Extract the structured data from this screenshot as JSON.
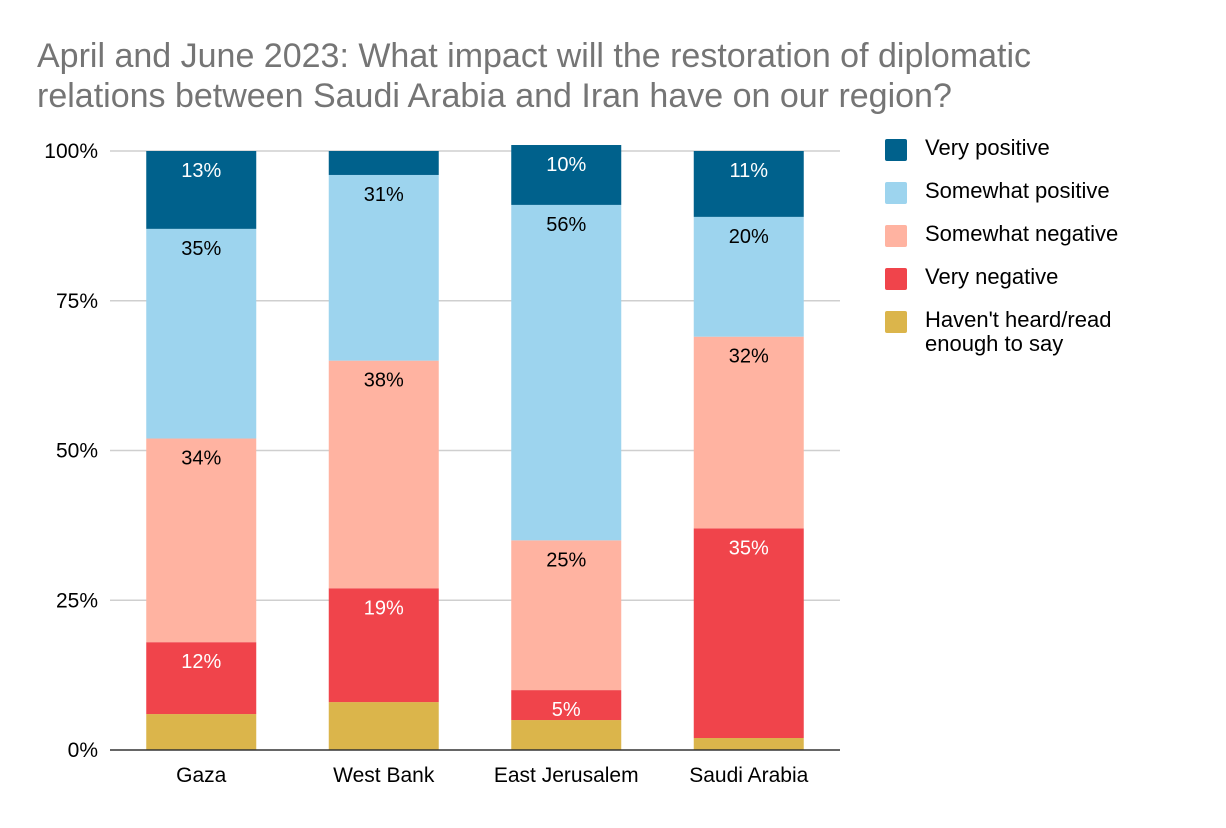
{
  "title_lines": [
    "April and June 2023:  What impact will the restoration of diplomatic",
    "relations between Saudi Arabia and Iran have on our region?"
  ],
  "legend": [
    {
      "label": "Very positive",
      "color": "#00618c"
    },
    {
      "label": "Somewhat positive",
      "color": "#9dd4ee"
    },
    {
      "label": "Somewhat negative",
      "color": "#ffb3a1"
    },
    {
      "label": "Very negative",
      "color": "#f0444b"
    },
    {
      "label": "Haven't heard/read enough to say",
      "color": "#dbb54b"
    }
  ],
  "chart_data": {
    "type": "bar",
    "stacked": true,
    "categories": [
      "Gaza",
      "West Bank",
      "East Jerusalem",
      "Saudi Arabia"
    ],
    "ylim": [
      0,
      100
    ],
    "yticks": [
      "0%",
      "25%",
      "50%",
      "75%",
      "100%"
    ],
    "grid": true,
    "legend_position": "right",
    "series": [
      {
        "name": "Haven't heard/read enough to say",
        "color": "#dbb54b",
        "values": [
          6,
          8,
          5,
          2
        ],
        "labels": [
          "",
          "",
          "",
          ""
        ],
        "label_color": "#000000"
      },
      {
        "name": "Very negative",
        "color": "#f0444b",
        "values": [
          12,
          19,
          5,
          35
        ],
        "labels": [
          "12%",
          "19%",
          "5%",
          "35%"
        ],
        "label_color": "#ffffff"
      },
      {
        "name": "Somewhat negative",
        "color": "#ffb3a1",
        "values": [
          34,
          38,
          25,
          32
        ],
        "labels": [
          "34%",
          "38%",
          "25%",
          "32%"
        ],
        "label_color": "#000000"
      },
      {
        "name": "Somewhat positive",
        "color": "#9dd4ee",
        "values": [
          35,
          31,
          56,
          20
        ],
        "labels": [
          "35%",
          "31%",
          "56%",
          "20%"
        ],
        "label_color": "#000000"
      },
      {
        "name": "Very positive",
        "color": "#00618c",
        "values": [
          13,
          4,
          10,
          11
        ],
        "labels": [
          "13%",
          "",
          "10%",
          "11%"
        ],
        "label_color": "#ffffff"
      }
    ]
  }
}
